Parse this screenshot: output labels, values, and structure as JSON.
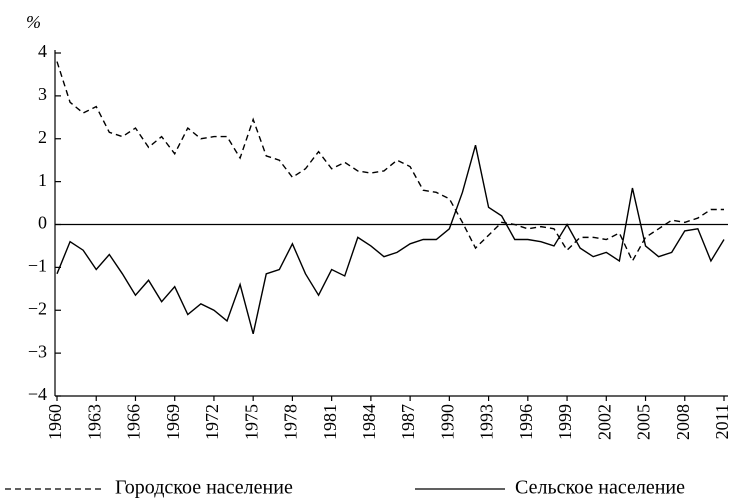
{
  "chart_data": {
    "type": "line",
    "y_label": "%",
    "x": [
      1960,
      1961,
      1962,
      1963,
      1964,
      1965,
      1966,
      1967,
      1968,
      1969,
      1970,
      1971,
      1972,
      1973,
      1974,
      1975,
      1976,
      1977,
      1978,
      1979,
      1980,
      1981,
      1982,
      1983,
      1984,
      1985,
      1986,
      1987,
      1988,
      1989,
      1990,
      1991,
      1992,
      1993,
      1994,
      1995,
      1996,
      1997,
      1998,
      1999,
      2000,
      2001,
      2002,
      2003,
      2004,
      2005,
      2006,
      2007,
      2008,
      2009,
      2010,
      2011
    ],
    "series": [
      {
        "name": "Городское население",
        "color": "#000000",
        "dash": true,
        "values": [
          3.8,
          2.85,
          2.6,
          2.75,
          2.15,
          2.05,
          2.25,
          1.8,
          2.05,
          1.65,
          2.25,
          2.0,
          2.05,
          2.05,
          1.55,
          2.45,
          1.6,
          1.5,
          1.1,
          1.3,
          1.7,
          1.3,
          1.45,
          1.25,
          1.2,
          1.25,
          1.5,
          1.35,
          0.8,
          0.75,
          0.6,
          0.05,
          -0.55,
          -0.25,
          0.05,
          0.0,
          -0.1,
          -0.05,
          -0.1,
          -0.6,
          -0.3,
          -0.3,
          -0.35,
          -0.2,
          -0.85,
          -0.3,
          -0.1,
          0.1,
          0.05,
          0.15,
          0.35,
          0.35
        ]
      },
      {
        "name": "Сельское население",
        "color": "#000000",
        "dash": false,
        "values": [
          -1.15,
          -0.4,
          -0.6,
          -1.05,
          -0.7,
          -1.15,
          -1.65,
          -1.3,
          -1.8,
          -1.45,
          -2.1,
          -1.85,
          -2.0,
          -2.25,
          -1.4,
          -2.55,
          -1.15,
          -1.05,
          -0.45,
          -1.15,
          -1.65,
          -1.05,
          -1.2,
          -0.3,
          -0.5,
          -0.75,
          -0.65,
          -0.45,
          -0.35,
          -0.35,
          -0.1,
          0.75,
          1.85,
          0.4,
          0.2,
          -0.35,
          -0.35,
          -0.4,
          -0.5,
          0.0,
          -0.55,
          -0.75,
          -0.65,
          -0.85,
          0.85,
          -0.5,
          -0.75,
          -0.65,
          -0.15,
          -0.1,
          -0.85,
          -0.35
        ]
      }
    ],
    "xlim": [
      1960,
      2011
    ],
    "xticks": [
      1960,
      1963,
      1966,
      1969,
      1972,
      1975,
      1978,
      1981,
      1984,
      1987,
      1990,
      1993,
      1996,
      1999,
      2002,
      2005,
      2008,
      2011
    ],
    "ylim": [
      -4,
      4
    ],
    "yticks": [
      {
        "value": -4,
        "label": "−4"
      },
      {
        "value": -3,
        "label": "−3"
      },
      {
        "value": -2,
        "label": "−2"
      },
      {
        "value": -1,
        "label": "−1"
      },
      0,
      1,
      2,
      3,
      4
    ],
    "zero_line": true
  }
}
